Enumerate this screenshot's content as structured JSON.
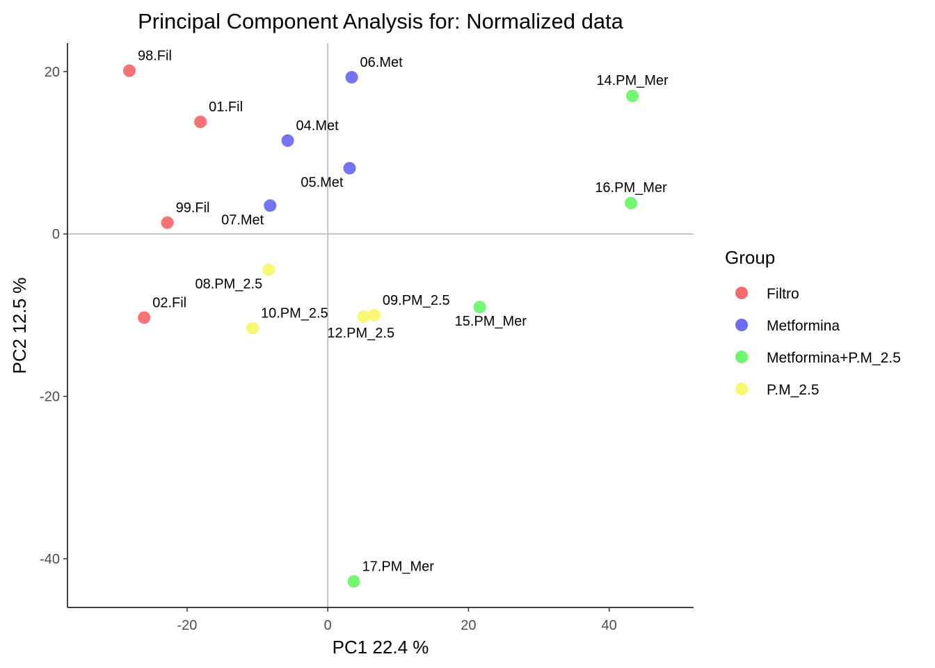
{
  "chart_data": {
    "type": "scatter",
    "title": "Principal Component Analysis for:  Normalized data",
    "xlabel": "PC1 22.4 %",
    "ylabel": "PC2 12.5 %",
    "xlim": [
      -37,
      52
    ],
    "ylim": [
      -46,
      23.5
    ],
    "x_ticks": [
      {
        "value": -20,
        "label": "-20"
      },
      {
        "value": 0,
        "label": "0"
      },
      {
        "value": 20,
        "label": "20"
      },
      {
        "value": 40,
        "label": "40"
      }
    ],
    "y_ticks": [
      {
        "value": 20,
        "label": "20"
      },
      {
        "value": 0,
        "label": "0"
      },
      {
        "value": -20,
        "label": "-20"
      },
      {
        "value": -40,
        "label": "-40"
      }
    ],
    "reference_lines": {
      "x": 0,
      "y": 0,
      "color": "#b3b3b3"
    },
    "grid": false,
    "legend": {
      "title": "Group",
      "position": "right",
      "entries": [
        {
          "name": "Filtro",
          "color": "#f8696b"
        },
        {
          "name": "Metformina",
          "color": "#6b6bf8"
        },
        {
          "name": "Metformina+P.M_2.5",
          "color": "#6cf86c"
        },
        {
          "name": "P.M_2.5",
          "color": "#f8f86b"
        }
      ]
    },
    "points": [
      {
        "label": "98.Fil",
        "group": "Filtro",
        "x": -28.2,
        "y": 20.1,
        "label_pos": "above-right"
      },
      {
        "label": "01.Fil",
        "group": "Filtro",
        "x": -18.1,
        "y": 13.8,
        "label_pos": "above-right"
      },
      {
        "label": "99.Fil",
        "group": "Filtro",
        "x": -22.8,
        "y": 1.4,
        "label_pos": "above-right"
      },
      {
        "label": "02.Fil",
        "group": "Filtro",
        "x": -26.1,
        "y": -10.3,
        "label_pos": "above-right"
      },
      {
        "label": "06.Met",
        "group": "Metformina",
        "x": 3.4,
        "y": 19.3,
        "label_pos": "above-right"
      },
      {
        "label": "04.Met",
        "group": "Metformina",
        "x": -5.7,
        "y": 11.5,
        "label_pos": "above-right"
      },
      {
        "label": "05.Met",
        "group": "Metformina",
        "x": 3.1,
        "y": 8.1,
        "label_pos": "below-left"
      },
      {
        "label": "07.Met",
        "group": "Metformina",
        "x": -8.2,
        "y": 3.5,
        "label_pos": "below-left"
      },
      {
        "label": "14.PM_Mer",
        "group": "Metformina+P.M_2.5",
        "x": 43.3,
        "y": 17.0,
        "label_pos": "above"
      },
      {
        "label": "16.PM_Mer",
        "group": "Metformina+P.M_2.5",
        "x": 43.1,
        "y": 3.8,
        "label_pos": "above"
      },
      {
        "label": "15.PM_Mer",
        "group": "Metformina+P.M_2.5",
        "x": 21.6,
        "y": -9.0,
        "label_pos": "below-right"
      },
      {
        "label": "17.PM_Mer",
        "group": "Metformina+P.M_2.5",
        "x": 3.7,
        "y": -42.8,
        "label_pos": "above-right"
      },
      {
        "label": "08.PM_2.5",
        "group": "P.M_2.5",
        "x": -8.4,
        "y": -4.4,
        "label_pos": "below-left"
      },
      {
        "label": "10.PM_2.5",
        "group": "P.M_2.5",
        "x": -10.7,
        "y": -11.6,
        "label_pos": "above-right"
      },
      {
        "label": "09.PM_2.5",
        "group": "P.M_2.5",
        "x": 6.6,
        "y": -10.0,
        "label_pos": "above-right"
      },
      {
        "label": "12.PM_2.5",
        "group": "P.M_2.5",
        "x": 5.1,
        "y": -10.2,
        "label_pos": "below"
      }
    ]
  }
}
